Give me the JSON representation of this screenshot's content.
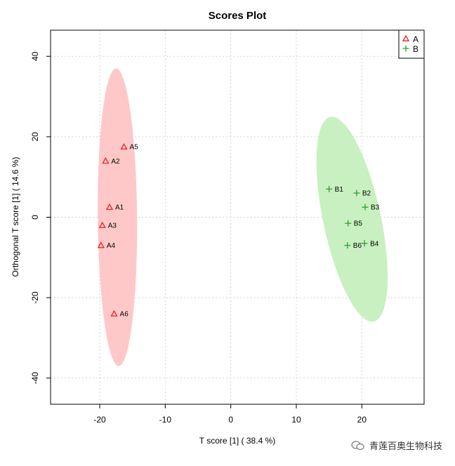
{
  "chart_data": {
    "type": "scatter",
    "title": "Scores Plot",
    "xlabel": "T score [1] ( 38.4 %)",
    "ylabel": "Orthogonal T score [1] ( 14.6 %)",
    "xlim": [
      -27.5,
      29.5
    ],
    "ylim": [
      -46.5,
      46.5
    ],
    "xticks": [
      -20,
      -10,
      0,
      10,
      20
    ],
    "yticks": [
      -40,
      -20,
      0,
      20,
      40
    ],
    "grid": true,
    "legend_position": "top-right",
    "series": [
      {
        "name": "A",
        "marker": "triangle",
        "color": "#e8222a",
        "ellipse_color": "#ffc8c8",
        "points": [
          {
            "label": "A5",
            "x": -16.3,
            "y": 17.5
          },
          {
            "label": "A2",
            "x": -19.1,
            "y": 14.0
          },
          {
            "label": "A1",
            "x": -18.5,
            "y": 2.5
          },
          {
            "label": "A3",
            "x": -19.6,
            "y": -2.0
          },
          {
            "label": "A4",
            "x": -19.8,
            "y": -7.0
          },
          {
            "label": "A6",
            "x": -17.8,
            "y": -24.0
          }
        ],
        "ellipse": {
          "cx": -17.3,
          "cy": 0,
          "rx": 3.0,
          "ry": 37.0,
          "angle": -0.5
        }
      },
      {
        "name": "B",
        "marker": "plus",
        "color": "#2ca02c",
        "ellipse_color": "#c8f0c0",
        "points": [
          {
            "label": "B1",
            "x": 15.0,
            "y": 7.0
          },
          {
            "label": "B2",
            "x": 19.2,
            "y": 6.0
          },
          {
            "label": "B3",
            "x": 20.5,
            "y": 2.5
          },
          {
            "label": "B5",
            "x": 17.9,
            "y": -1.5
          },
          {
            "label": "B4",
            "x": 20.4,
            "y": -6.5
          },
          {
            "label": "B6",
            "x": 17.8,
            "y": -7.0
          }
        ],
        "ellipse": {
          "cx": 18.5,
          "cy": -0.5,
          "rx": 4.4,
          "ry": 26.0,
          "angle": -12
        }
      }
    ]
  },
  "watermark": {
    "text": "青莲百奥生物科技"
  }
}
